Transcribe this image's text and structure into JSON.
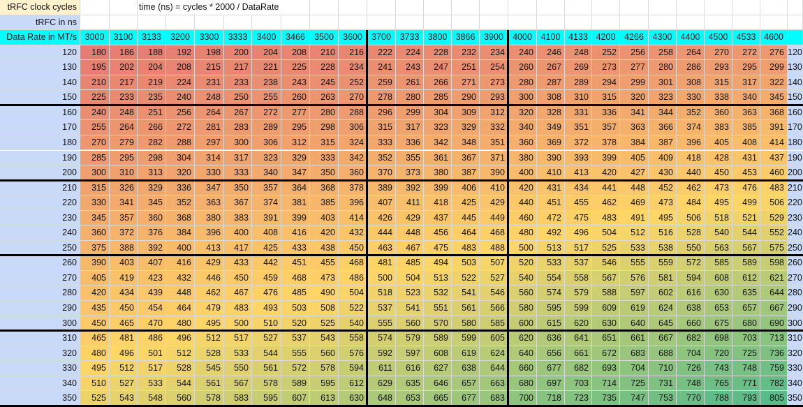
{
  "header": {
    "clock_label": "tRFC clock cycles",
    "ns_label": "tRFC in ns",
    "formula": "time (ns) = cycles * 2000 / DataRate",
    "rate_label": "Data Rate in MT/s"
  },
  "rates": [
    3000,
    3100,
    3133,
    3200,
    3300,
    3333,
    3400,
    3466,
    3500,
    3600,
    3700,
    3733,
    3800,
    3866,
    3900,
    4000,
    4100,
    4133,
    4200,
    4266,
    4300,
    4400,
    4500,
    4533,
    4600
  ],
  "ns_values": [
    120,
    130,
    140,
    150,
    160,
    170,
    180,
    190,
    200,
    210,
    220,
    230,
    240,
    250,
    260,
    270,
    280,
    290,
    300,
    310,
    320,
    330,
    340,
    350
  ],
  "rows": [
    [
      180,
      186,
      188,
      192,
      198,
      200,
      204,
      208,
      210,
      216,
      222,
      224,
      228,
      232,
      234,
      240,
      246,
      248,
      252,
      256,
      258,
      264,
      270,
      272,
      276
    ],
    [
      195,
      202,
      204,
      208,
      215,
      217,
      221,
      225,
      228,
      234,
      241,
      243,
      247,
      251,
      254,
      260,
      267,
      269,
      273,
      277,
      280,
      286,
      293,
      295,
      299
    ],
    [
      210,
      217,
      219,
      224,
      231,
      233,
      238,
      243,
      245,
      252,
      259,
      261,
      266,
      271,
      273,
      280,
      287,
      289,
      294,
      299,
      301,
      308,
      315,
      317,
      322
    ],
    [
      225,
      233,
      235,
      240,
      248,
      250,
      255,
      260,
      263,
      270,
      278,
      280,
      285,
      290,
      293,
      300,
      308,
      310,
      315,
      320,
      323,
      330,
      338,
      340,
      345
    ],
    [
      240,
      248,
      251,
      256,
      264,
      267,
      272,
      277,
      280,
      288,
      296,
      299,
      304,
      309,
      312,
      320,
      328,
      331,
      336,
      341,
      344,
      352,
      360,
      363,
      368
    ],
    [
      255,
      264,
      266,
      272,
      281,
      283,
      289,
      295,
      298,
      306,
      315,
      317,
      323,
      329,
      332,
      340,
      349,
      351,
      357,
      363,
      366,
      374,
      383,
      385,
      391
    ],
    [
      270,
      279,
      282,
      288,
      297,
      300,
      306,
      312,
      315,
      324,
      333,
      336,
      342,
      348,
      351,
      360,
      369,
      372,
      378,
      384,
      387,
      396,
      405,
      408,
      414
    ],
    [
      285,
      295,
      298,
      304,
      314,
      317,
      323,
      329,
      333,
      342,
      352,
      355,
      361,
      367,
      371,
      380,
      390,
      393,
      399,
      405,
      409,
      418,
      428,
      431,
      437
    ],
    [
      300,
      310,
      313,
      320,
      330,
      333,
      340,
      347,
      350,
      360,
      370,
      373,
      380,
      387,
      390,
      400,
      410,
      413,
      420,
      427,
      430,
      440,
      450,
      453,
      460
    ],
    [
      315,
      326,
      329,
      336,
      347,
      350,
      357,
      364,
      368,
      378,
      389,
      392,
      399,
      406,
      410,
      420,
      431,
      434,
      441,
      448,
      452,
      462,
      473,
      476,
      483
    ],
    [
      330,
      341,
      345,
      352,
      363,
      367,
      374,
      381,
      385,
      396,
      407,
      411,
      418,
      425,
      429,
      440,
      451,
      455,
      462,
      469,
      473,
      484,
      495,
      499,
      506
    ],
    [
      345,
      357,
      360,
      368,
      380,
      383,
      391,
      399,
      403,
      414,
      426,
      429,
      437,
      445,
      449,
      460,
      472,
      475,
      483,
      491,
      495,
      506,
      518,
      521,
      529
    ],
    [
      360,
      372,
      376,
      384,
      396,
      400,
      408,
      416,
      420,
      432,
      444,
      448,
      456,
      464,
      468,
      480,
      492,
      496,
      504,
      512,
      516,
      528,
      540,
      544,
      552
    ],
    [
      375,
      388,
      392,
      400,
      413,
      417,
      425,
      433,
      438,
      450,
      463,
      467,
      475,
      483,
      488,
      500,
      513,
      517,
      525,
      533,
      538,
      550,
      563,
      567,
      575
    ],
    [
      390,
      403,
      407,
      416,
      429,
      433,
      442,
      451,
      455,
      468,
      481,
      485,
      494,
      503,
      507,
      520,
      533,
      537,
      546,
      555,
      559,
      572,
      585,
      589,
      598
    ],
    [
      405,
      419,
      423,
      432,
      446,
      450,
      459,
      468,
      473,
      486,
      500,
      504,
      513,
      522,
      527,
      540,
      554,
      558,
      567,
      576,
      581,
      594,
      608,
      612,
      621
    ],
    [
      420,
      434,
      439,
      448,
      462,
      467,
      476,
      485,
      490,
      504,
      518,
      523,
      532,
      541,
      546,
      560,
      574,
      579,
      588,
      597,
      602,
      616,
      630,
      635,
      644
    ],
    [
      435,
      450,
      454,
      464,
      479,
      483,
      493,
      503,
      508,
      522,
      537,
      541,
      551,
      561,
      566,
      580,
      595,
      599,
      609,
      619,
      624,
      638,
      653,
      657,
      667
    ],
    [
      450,
      465,
      470,
      480,
      495,
      500,
      510,
      520,
      525,
      540,
      555,
      560,
      570,
      580,
      585,
      600,
      615,
      620,
      630,
      640,
      645,
      660,
      675,
      680,
      690
    ],
    [
      465,
      481,
      486,
      496,
      512,
      517,
      527,
      537,
      543,
      558,
      574,
      579,
      589,
      599,
      605,
      620,
      636,
      641,
      651,
      661,
      667,
      682,
      698,
      703,
      713
    ],
    [
      480,
      496,
      501,
      512,
      528,
      533,
      544,
      555,
      560,
      576,
      592,
      597,
      608,
      619,
      624,
      640,
      656,
      661,
      672,
      683,
      688,
      704,
      720,
      725,
      736
    ],
    [
      495,
      512,
      517,
      528,
      545,
      550,
      561,
      572,
      578,
      594,
      611,
      616,
      627,
      638,
      644,
      660,
      677,
      682,
      693,
      704,
      710,
      726,
      743,
      748,
      759
    ],
    [
      510,
      527,
      533,
      544,
      561,
      567,
      578,
      589,
      595,
      612,
      629,
      635,
      646,
      657,
      663,
      680,
      697,
      703,
      714,
      725,
      731,
      748,
      765,
      771,
      782
    ],
    [
      525,
      543,
      548,
      560,
      578,
      583,
      595,
      607,
      613,
      630,
      648,
      653,
      665,
      677,
      683,
      700,
      718,
      723,
      735,
      747,
      753,
      770,
      788,
      793,
      805
    ]
  ],
  "colors": {
    "header_yellow": "#fff2cc",
    "header_blue": "#c9daf8",
    "header_cyan": "#00ffff",
    "scale_low": "#e67c73",
    "scale_mid": "#ffd666",
    "scale_high": "#57bb8a"
  }
}
